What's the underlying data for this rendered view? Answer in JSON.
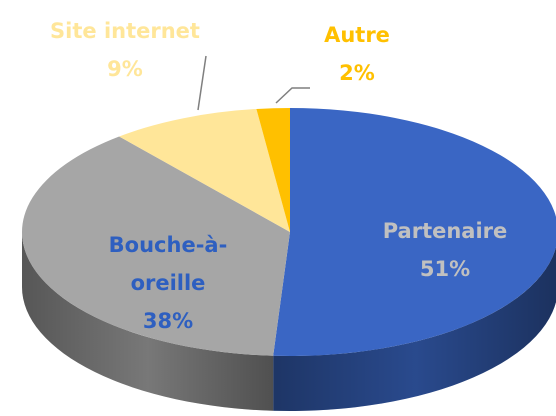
{
  "chart_data": {
    "type": "pie",
    "categories": [
      "Partenaire",
      "Bouche-à-oreille",
      "Site internet",
      "Autre"
    ],
    "values": [
      51,
      38,
      9,
      2
    ],
    "value_labels": [
      "51%",
      "38%",
      "9%",
      "2%"
    ],
    "colors": [
      "#3a66c4",
      "#a6a6a6",
      "#ffe699",
      "#ffc000"
    ]
  }
}
